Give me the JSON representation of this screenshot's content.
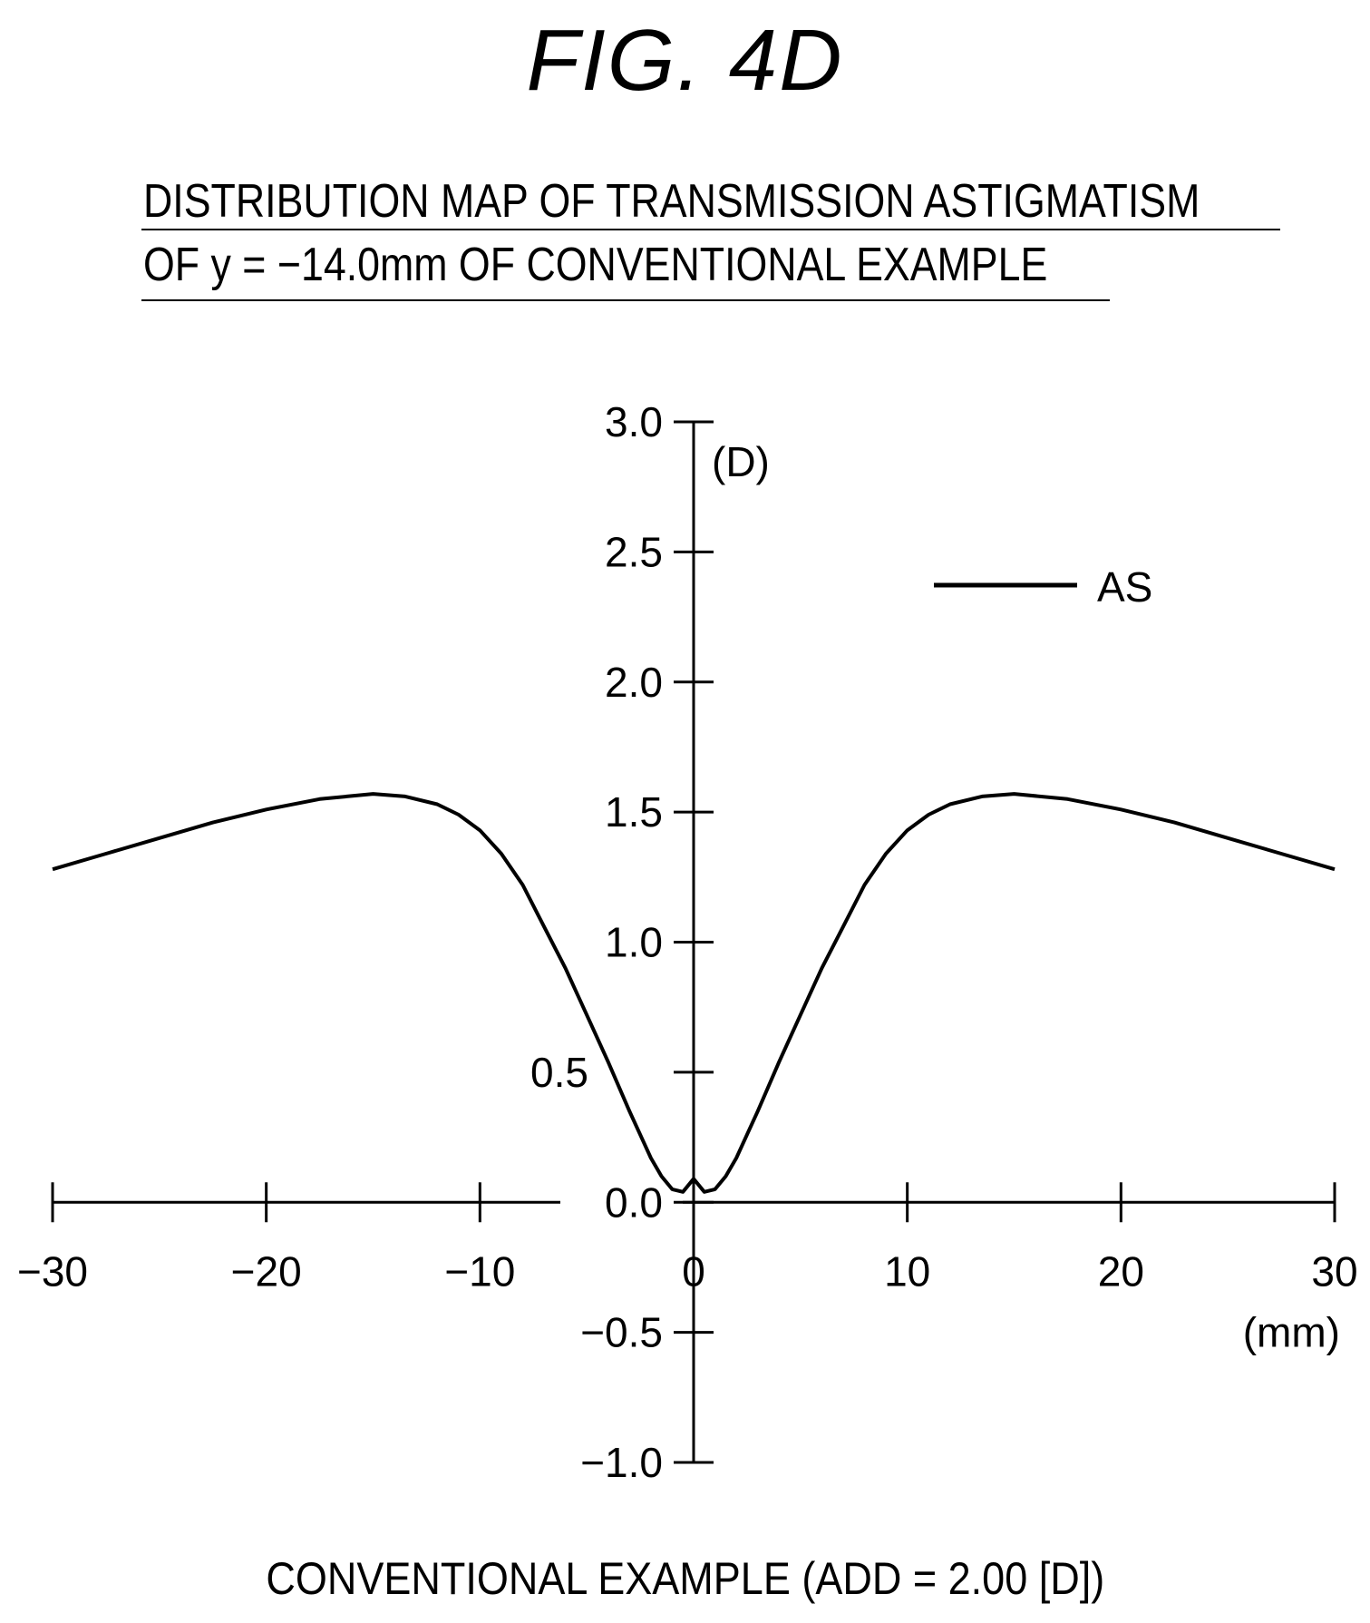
{
  "figure": {
    "label": "FIG. 4D"
  },
  "title_lines": [
    "DISTRIBUTION MAP OF TRANSMISSION ASTIGMATISM",
    "OF y = −14.0mm OF CONVENTIONAL EXAMPLE"
  ],
  "caption": "CONVENTIONAL EXAMPLE (ADD = 2.00 [D])",
  "chart_data": {
    "type": "line",
    "title": "DISTRIBUTION MAP OF TRANSMISSION ASTIGMATISM OF y = −14.0mm OF CONVENTIONAL EXAMPLE",
    "xlabel": "(mm)",
    "ylabel": "(D)",
    "xlim": [
      -30,
      30
    ],
    "ylim": [
      -1.0,
      3.0
    ],
    "x_ticks": [
      -30,
      -20,
      -10,
      0,
      10,
      20,
      30
    ],
    "x_tick_labels": [
      "−30",
      "−20",
      "−10",
      "0",
      "10",
      "20",
      "30"
    ],
    "y_ticks": [
      3.0,
      2.5,
      2.0,
      1.5,
      1.0,
      0.5,
      0.0,
      -0.5,
      -1.0
    ],
    "y_tick_labels": [
      "3.0",
      "2.5",
      "2.0",
      "1.5",
      "1.0",
      "0.5",
      "0.0",
      "−0.5",
      "−1.0"
    ],
    "grid": false,
    "legend_position": "top-right",
    "series": [
      {
        "name": "AS",
        "color": "#000000",
        "x": [
          -30,
          -27.5,
          -25,
          -22.5,
          -20,
          -17.5,
          -15,
          -13.5,
          -12,
          -11,
          -10,
          -9,
          -8,
          -7,
          -6,
          -5,
          -4,
          -3,
          -2.5,
          -2,
          -1.5,
          -1,
          -0.5,
          0,
          0.5,
          1,
          1.5,
          2,
          2.5,
          3,
          4,
          5,
          6,
          7,
          8,
          9,
          10,
          11,
          12,
          13.5,
          15,
          17.5,
          20,
          22.5,
          25,
          27.5,
          30
        ],
        "y": [
          1.28,
          1.34,
          1.4,
          1.46,
          1.51,
          1.55,
          1.57,
          1.56,
          1.53,
          1.49,
          1.43,
          1.34,
          1.22,
          1.06,
          0.9,
          0.72,
          0.54,
          0.35,
          0.26,
          0.17,
          0.1,
          0.05,
          0.04,
          0.09,
          0.04,
          0.05,
          0.1,
          0.17,
          0.26,
          0.35,
          0.54,
          0.72,
          0.9,
          1.06,
          1.22,
          1.34,
          1.43,
          1.49,
          1.53,
          1.56,
          1.57,
          1.55,
          1.51,
          1.46,
          1.4,
          1.34,
          1.28
        ]
      }
    ]
  }
}
